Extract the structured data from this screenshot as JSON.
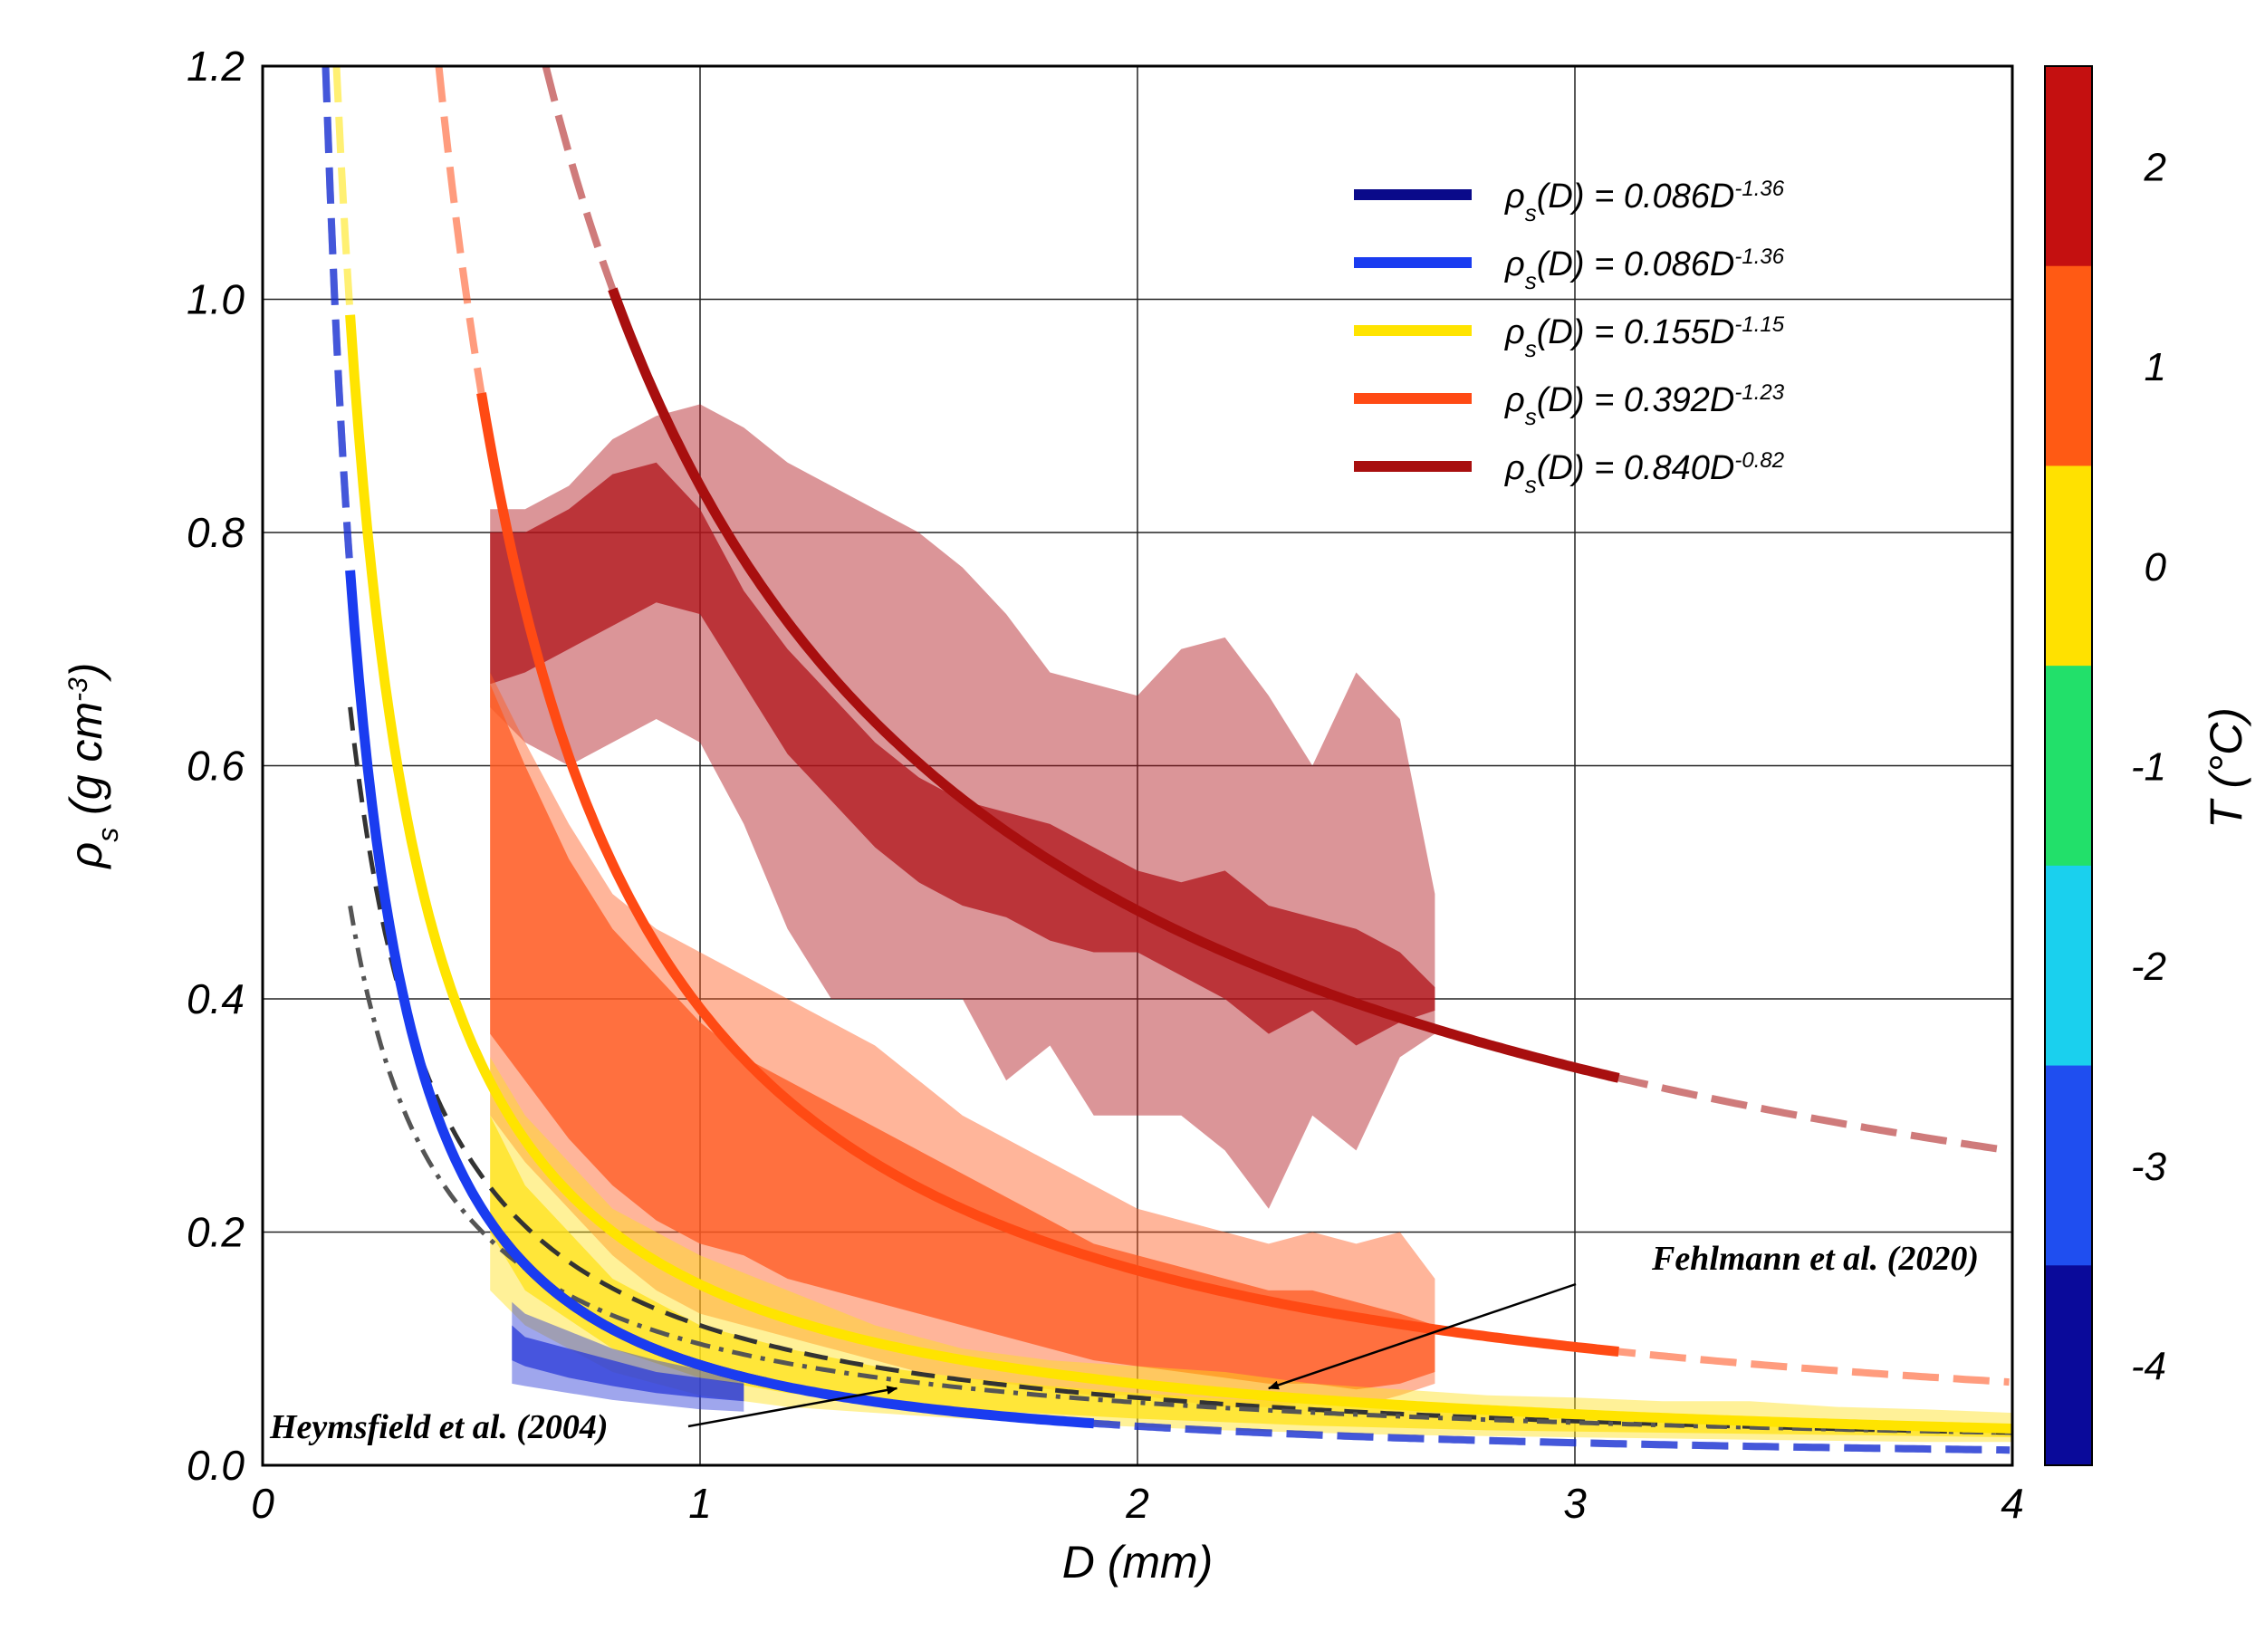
{
  "chart_data": {
    "type": "line",
    "xlabel": "D (mm)",
    "ylabel": "ρs (g cm-3)",
    "ylabel_parts": {
      "symbol": "ρ",
      "sub": "s",
      "text": " (g cm",
      "sup": "-3",
      "close": ")"
    },
    "xlim": [
      0,
      4
    ],
    "ylim": [
      0,
      1.2
    ],
    "x_ticks": [
      "0",
      "1",
      "2",
      "3",
      "4"
    ],
    "y_ticks": [
      "0.0",
      "0.2",
      "0.4",
      "0.6",
      "0.8",
      "1.0",
      "1.2"
    ],
    "grid": true,
    "legend_position": "top-right",
    "series": [
      {
        "name": "ρs(D) = 0.086D^-1.36",
        "prefix": "ρ",
        "sub": "s",
        "mid": "(D) = 0.086D",
        "exp": "-1.36",
        "a": 0.086,
        "b": -1.36,
        "color": "#0a0a8a",
        "solid_range": [
          0.55,
          1.15
        ]
      },
      {
        "name": "ρs(D) = 0.086D^-1.36",
        "prefix": "ρ",
        "sub": "s",
        "mid": "(D) = 0.086D",
        "exp": "-1.36",
        "a": 0.086,
        "b": -1.36,
        "color": "#1a3cf0",
        "solid_range": [
          0.2,
          1.9
        ]
      },
      {
        "name": "ρs(D) = 0.155D^-1.15",
        "prefix": "ρ",
        "sub": "s",
        "mid": "(D) = 0.155D",
        "exp": "-1.15",
        "a": 0.155,
        "b": -1.15,
        "color": "#ffe400",
        "solid_range": [
          0.2,
          4.0
        ]
      },
      {
        "name": "ρs(D) = 0.392D^-1.23",
        "prefix": "ρ",
        "sub": "s",
        "mid": "(D) = 0.392D",
        "exp": "-1.23",
        "a": 0.392,
        "b": -1.23,
        "color": "#ff4a14",
        "solid_range": [
          0.5,
          3.1
        ]
      },
      {
        "name": "ρs(D) = 0.840D^-0.82",
        "prefix": "ρ",
        "sub": "s",
        "mid": "(D) = 0.840D",
        "exp": "-0.82",
        "a": 0.84,
        "b": -0.82,
        "color": "#a80f0f",
        "solid_range": [
          0.8,
          3.1
        ]
      }
    ],
    "reference_curves": [
      {
        "name": "Fehlmann et al. (2020)",
        "a": 0.12,
        "b": -1.05,
        "style": "dashed",
        "color": "#333333"
      },
      {
        "name": "Heymsfield et al. (2004)",
        "a": 0.104,
        "b": -0.95,
        "style": "dashdot",
        "color": "#555555"
      }
    ],
    "bands": [
      {
        "temperature_class": 2,
        "color": "#b0141a",
        "x": [
          0.52,
          0.6,
          0.7,
          0.8,
          0.9,
          1.0,
          1.1,
          1.2,
          1.3,
          1.4,
          1.5,
          1.6,
          1.7,
          1.8,
          1.9,
          2.0,
          2.1,
          2.2,
          2.3,
          2.4,
          2.5,
          2.6,
          2.68
        ],
        "inner_upper": [
          0.8,
          0.8,
          0.82,
          0.85,
          0.86,
          0.82,
          0.75,
          0.7,
          0.66,
          0.62,
          0.59,
          0.57,
          0.56,
          0.55,
          0.53,
          0.51,
          0.5,
          0.51,
          0.48,
          0.47,
          0.46,
          0.44,
          0.41
        ],
        "inner_lower": [
          0.67,
          0.68,
          0.7,
          0.72,
          0.74,
          0.73,
          0.67,
          0.61,
          0.57,
          0.53,
          0.5,
          0.48,
          0.47,
          0.45,
          0.44,
          0.44,
          0.42,
          0.4,
          0.37,
          0.39,
          0.36,
          0.38,
          0.39
        ],
        "outer_upper": [
          0.82,
          0.82,
          0.84,
          0.88,
          0.9,
          0.91,
          0.89,
          0.86,
          0.84,
          0.82,
          0.8,
          0.77,
          0.73,
          0.68,
          0.67,
          0.66,
          0.7,
          0.71,
          0.66,
          0.6,
          0.68,
          0.64,
          0.49
        ],
        "outer_lower": [
          0.65,
          0.62,
          0.6,
          0.62,
          0.64,
          0.62,
          0.55,
          0.46,
          0.4,
          0.4,
          0.4,
          0.4,
          0.33,
          0.36,
          0.3,
          0.3,
          0.3,
          0.27,
          0.22,
          0.3,
          0.27,
          0.35,
          0.37
        ]
      },
      {
        "temperature_class": 1,
        "color": "#ff5a20",
        "x": [
          0.52,
          0.6,
          0.7,
          0.8,
          0.9,
          1.0,
          1.1,
          1.2,
          1.3,
          1.4,
          1.5,
          1.6,
          1.7,
          1.8,
          1.9,
          2.0,
          2.1,
          2.2,
          2.3,
          2.4,
          2.5,
          2.6,
          2.68
        ],
        "inner_upper": [
          0.67,
          0.6,
          0.52,
          0.46,
          0.42,
          0.38,
          0.35,
          0.33,
          0.31,
          0.29,
          0.27,
          0.25,
          0.23,
          0.21,
          0.19,
          0.18,
          0.17,
          0.16,
          0.15,
          0.15,
          0.14,
          0.13,
          0.12
        ],
        "inner_lower": [
          0.37,
          0.33,
          0.28,
          0.24,
          0.21,
          0.19,
          0.18,
          0.16,
          0.15,
          0.14,
          0.13,
          0.12,
          0.11,
          0.1,
          0.09,
          0.085,
          0.08,
          0.075,
          0.07,
          0.07,
          0.065,
          0.07,
          0.08
        ],
        "outer_upper": [
          0.68,
          0.62,
          0.55,
          0.49,
          0.46,
          0.44,
          0.42,
          0.4,
          0.38,
          0.36,
          0.33,
          0.3,
          0.28,
          0.26,
          0.24,
          0.22,
          0.21,
          0.2,
          0.19,
          0.2,
          0.19,
          0.2,
          0.16
        ],
        "outer_lower": [
          0.3,
          0.26,
          0.22,
          0.18,
          0.15,
          0.13,
          0.12,
          0.11,
          0.1,
          0.09,
          0.08,
          0.075,
          0.07,
          0.065,
          0.06,
          0.06,
          0.055,
          0.05,
          0.05,
          0.055,
          0.05,
          0.06,
          0.07
        ]
      },
      {
        "temperature_class": 0,
        "color": "#ffe11a",
        "x": [
          0.52,
          0.6,
          0.8,
          1.0,
          1.2,
          1.4,
          1.6,
          1.8,
          2.0,
          2.2,
          2.4,
          2.6,
          2.8,
          3.0,
          3.2,
          3.4,
          3.6,
          3.8,
          4.0
        ],
        "inner_upper": [
          0.3,
          0.24,
          0.16,
          0.12,
          0.1,
          0.085,
          0.075,
          0.068,
          0.062,
          0.057,
          0.053,
          0.05,
          0.047,
          0.045,
          0.043,
          0.041,
          0.039,
          0.037,
          0.035
        ],
        "inner_lower": [
          0.2,
          0.15,
          0.1,
          0.075,
          0.062,
          0.054,
          0.048,
          0.044,
          0.04,
          0.037,
          0.034,
          0.032,
          0.03,
          0.029,
          0.028,
          0.027,
          0.026,
          0.025,
          0.024
        ],
        "outer_upper": [
          0.35,
          0.3,
          0.22,
          0.18,
          0.15,
          0.12,
          0.1,
          0.09,
          0.085,
          0.08,
          0.07,
          0.065,
          0.06,
          0.058,
          0.055,
          0.055,
          0.05,
          0.048,
          0.045
        ],
        "outer_lower": [
          0.15,
          0.12,
          0.08,
          0.06,
          0.05,
          0.045,
          0.04,
          0.036,
          0.033,
          0.03,
          0.028,
          0.026,
          0.025,
          0.024,
          0.023,
          0.022,
          0.021,
          0.02,
          0.02
        ]
      },
      {
        "temperature_class": -3,
        "color": "#2a3ad8",
        "x": [
          0.57,
          0.6,
          0.7,
          0.8,
          0.9,
          1.0,
          1.1
        ],
        "inner_upper": [
          0.12,
          0.11,
          0.1,
          0.09,
          0.08,
          0.075,
          0.07
        ],
        "inner_lower": [
          0.09,
          0.085,
          0.075,
          0.068,
          0.062,
          0.058,
          0.055
        ],
        "outer_upper": [
          0.14,
          0.13,
          0.115,
          0.1,
          0.09,
          0.082,
          0.076
        ],
        "outer_lower": [
          0.07,
          0.068,
          0.062,
          0.056,
          0.052,
          0.048,
          0.046
        ]
      }
    ],
    "colorbar": {
      "label": "T (°C)",
      "ticks": [
        "2",
        "1",
        "0",
        "-1",
        "-2",
        "-3",
        "-4"
      ],
      "colors": [
        "#c41010",
        "#ff5a14",
        "#ffe100",
        "#22e06a",
        "#1ad0ee",
        "#1f4ef0",
        "#0a0a9a"
      ]
    },
    "annotations": [
      {
        "text": "Fehlmann et al. (2020)",
        "arrow_to": [
          2.3,
          0.066
        ]
      },
      {
        "text": "Heymsfield et al. (2004)",
        "arrow_to": [
          1.45,
          0.066
        ]
      }
    ]
  }
}
